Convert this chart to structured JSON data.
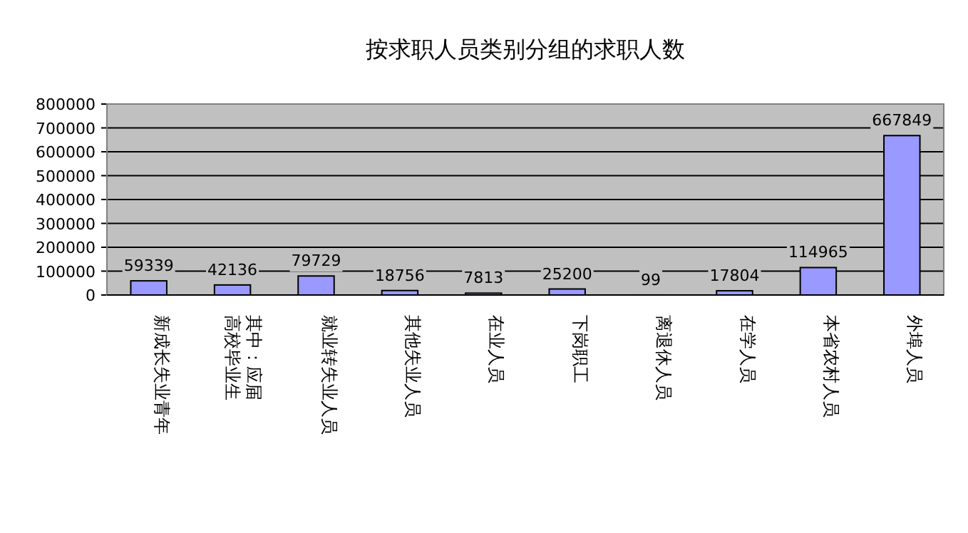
{
  "chart_data": {
    "type": "bar",
    "title": "按求职人员类别分组的求职人数",
    "categories": [
      "新成长失业青年",
      "其中：应届高校毕业生",
      "就业转失业人员",
      "其他失业人员",
      "在业人员",
      "下岗职工",
      "离退休人员",
      "在学人员",
      "本省农村人员",
      "外埠人员"
    ],
    "values": [
      59339,
      42136,
      79729,
      18756,
      7813,
      25200,
      99,
      17804,
      114965,
      667849
    ],
    "color": "#9999ff",
    "ylim": [
      0,
      800000
    ],
    "yticks": [
      0,
      100000,
      200000,
      300000,
      400000,
      500000,
      600000,
      700000,
      800000
    ],
    "grid": "y",
    "data_labels": true
  }
}
